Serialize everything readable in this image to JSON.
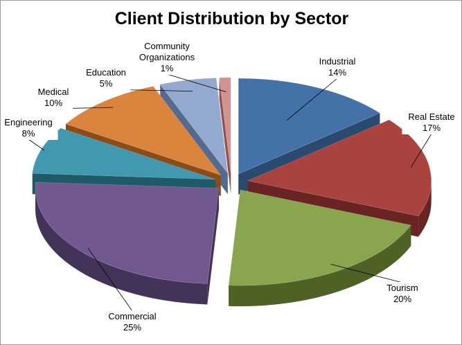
{
  "chart_data": {
    "type": "pie",
    "title": "Client Distribution by Sector",
    "style": "3d-exploded",
    "slices": [
      {
        "label": "Industrial",
        "value": 14,
        "value_label": "14%",
        "color": "#4472a8",
        "side_color": "#2b4a70"
      },
      {
        "label": "Real Estate",
        "value": 17,
        "value_label": "17%",
        "color": "#aa4240",
        "side_color": "#6a2423"
      },
      {
        "label": "Tourism",
        "value": 20,
        "value_label": "20%",
        "color": "#89a54e",
        "side_color": "#4e6226"
      },
      {
        "label": "Commercial",
        "value": 25,
        "value_label": "25%",
        "color": "#71588f",
        "side_color": "#443358"
      },
      {
        "label": "Engineering",
        "value": 8,
        "value_label": "8%",
        "color": "#4198af",
        "side_color": "#1f5a68"
      },
      {
        "label": "Medical",
        "value": 10,
        "value_label": "10%",
        "color": "#db843d",
        "side_color": "#8a4c19"
      },
      {
        "label": "Education",
        "value": 5,
        "value_label": "5%",
        "color": "#93a9cf",
        "side_color": "#556a8f"
      },
      {
        "label": "Community Organizations",
        "value": 1,
        "value_label": "1%",
        "color": "#d19392",
        "side_color": "#8e5251"
      }
    ]
  }
}
